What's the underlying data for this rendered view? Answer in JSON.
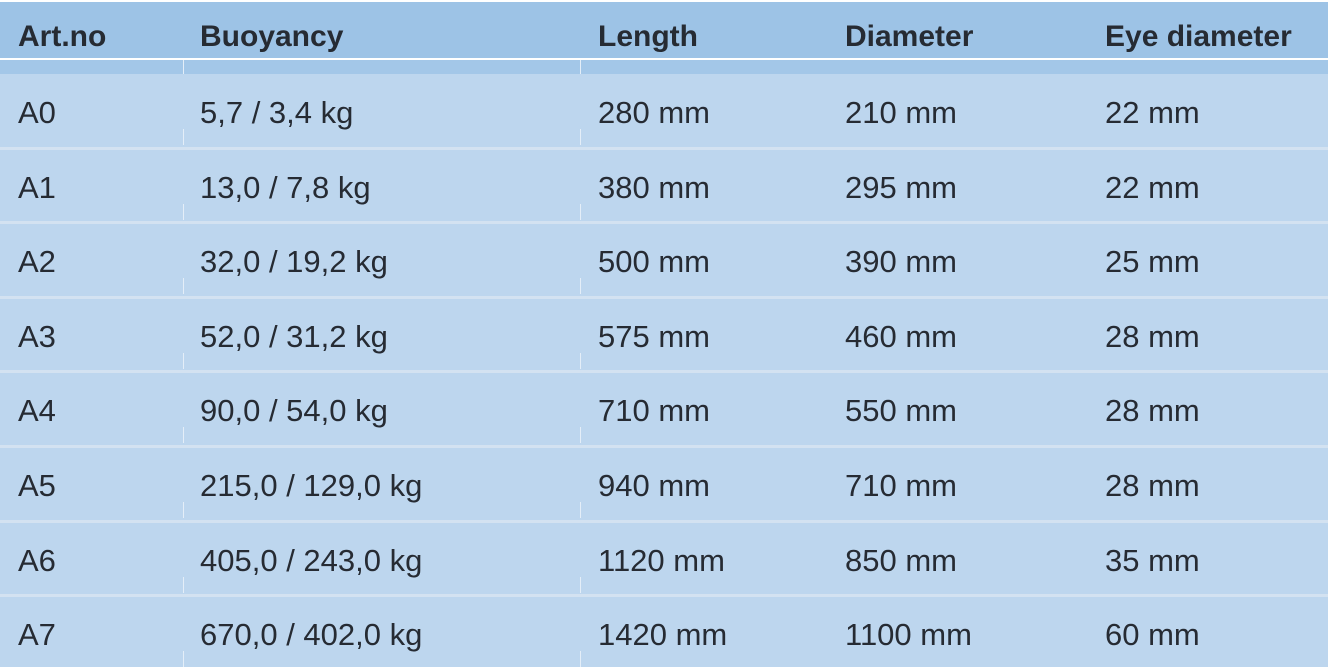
{
  "table": {
    "headers": [
      "Art.no",
      "Buoyancy",
      "Length",
      "Diameter",
      "Eye diameter"
    ],
    "rows": [
      [
        "A0",
        "5,7 / 3,4 kg",
        "280 mm",
        "210 mm",
        "22 mm"
      ],
      [
        "A1",
        "13,0 / 7,8 kg",
        "380 mm",
        "295 mm",
        "22 mm"
      ],
      [
        "A2",
        "32,0 / 19,2 kg",
        "500 mm",
        "390 mm",
        "25 mm"
      ],
      [
        "A3",
        "52,0 / 31,2 kg",
        "575 mm",
        "460 mm",
        "28 mm"
      ],
      [
        "A4",
        "90,0 / 54,0 kg",
        "710 mm",
        "550 mm",
        "28 mm"
      ],
      [
        "A5",
        "215,0 / 129,0 kg",
        "940 mm",
        "710 mm",
        "28 mm"
      ],
      [
        "A6",
        "405,0 / 243,0 kg",
        "1120 mm",
        "850 mm",
        "35 mm"
      ],
      [
        "A7",
        "670,0 / 402,0 kg",
        "1420 mm",
        "1100 mm",
        "60 mm"
      ]
    ]
  },
  "colors": {
    "header": "#9dc3e6",
    "row": "#bdd6ee",
    "text": "#262b33"
  }
}
